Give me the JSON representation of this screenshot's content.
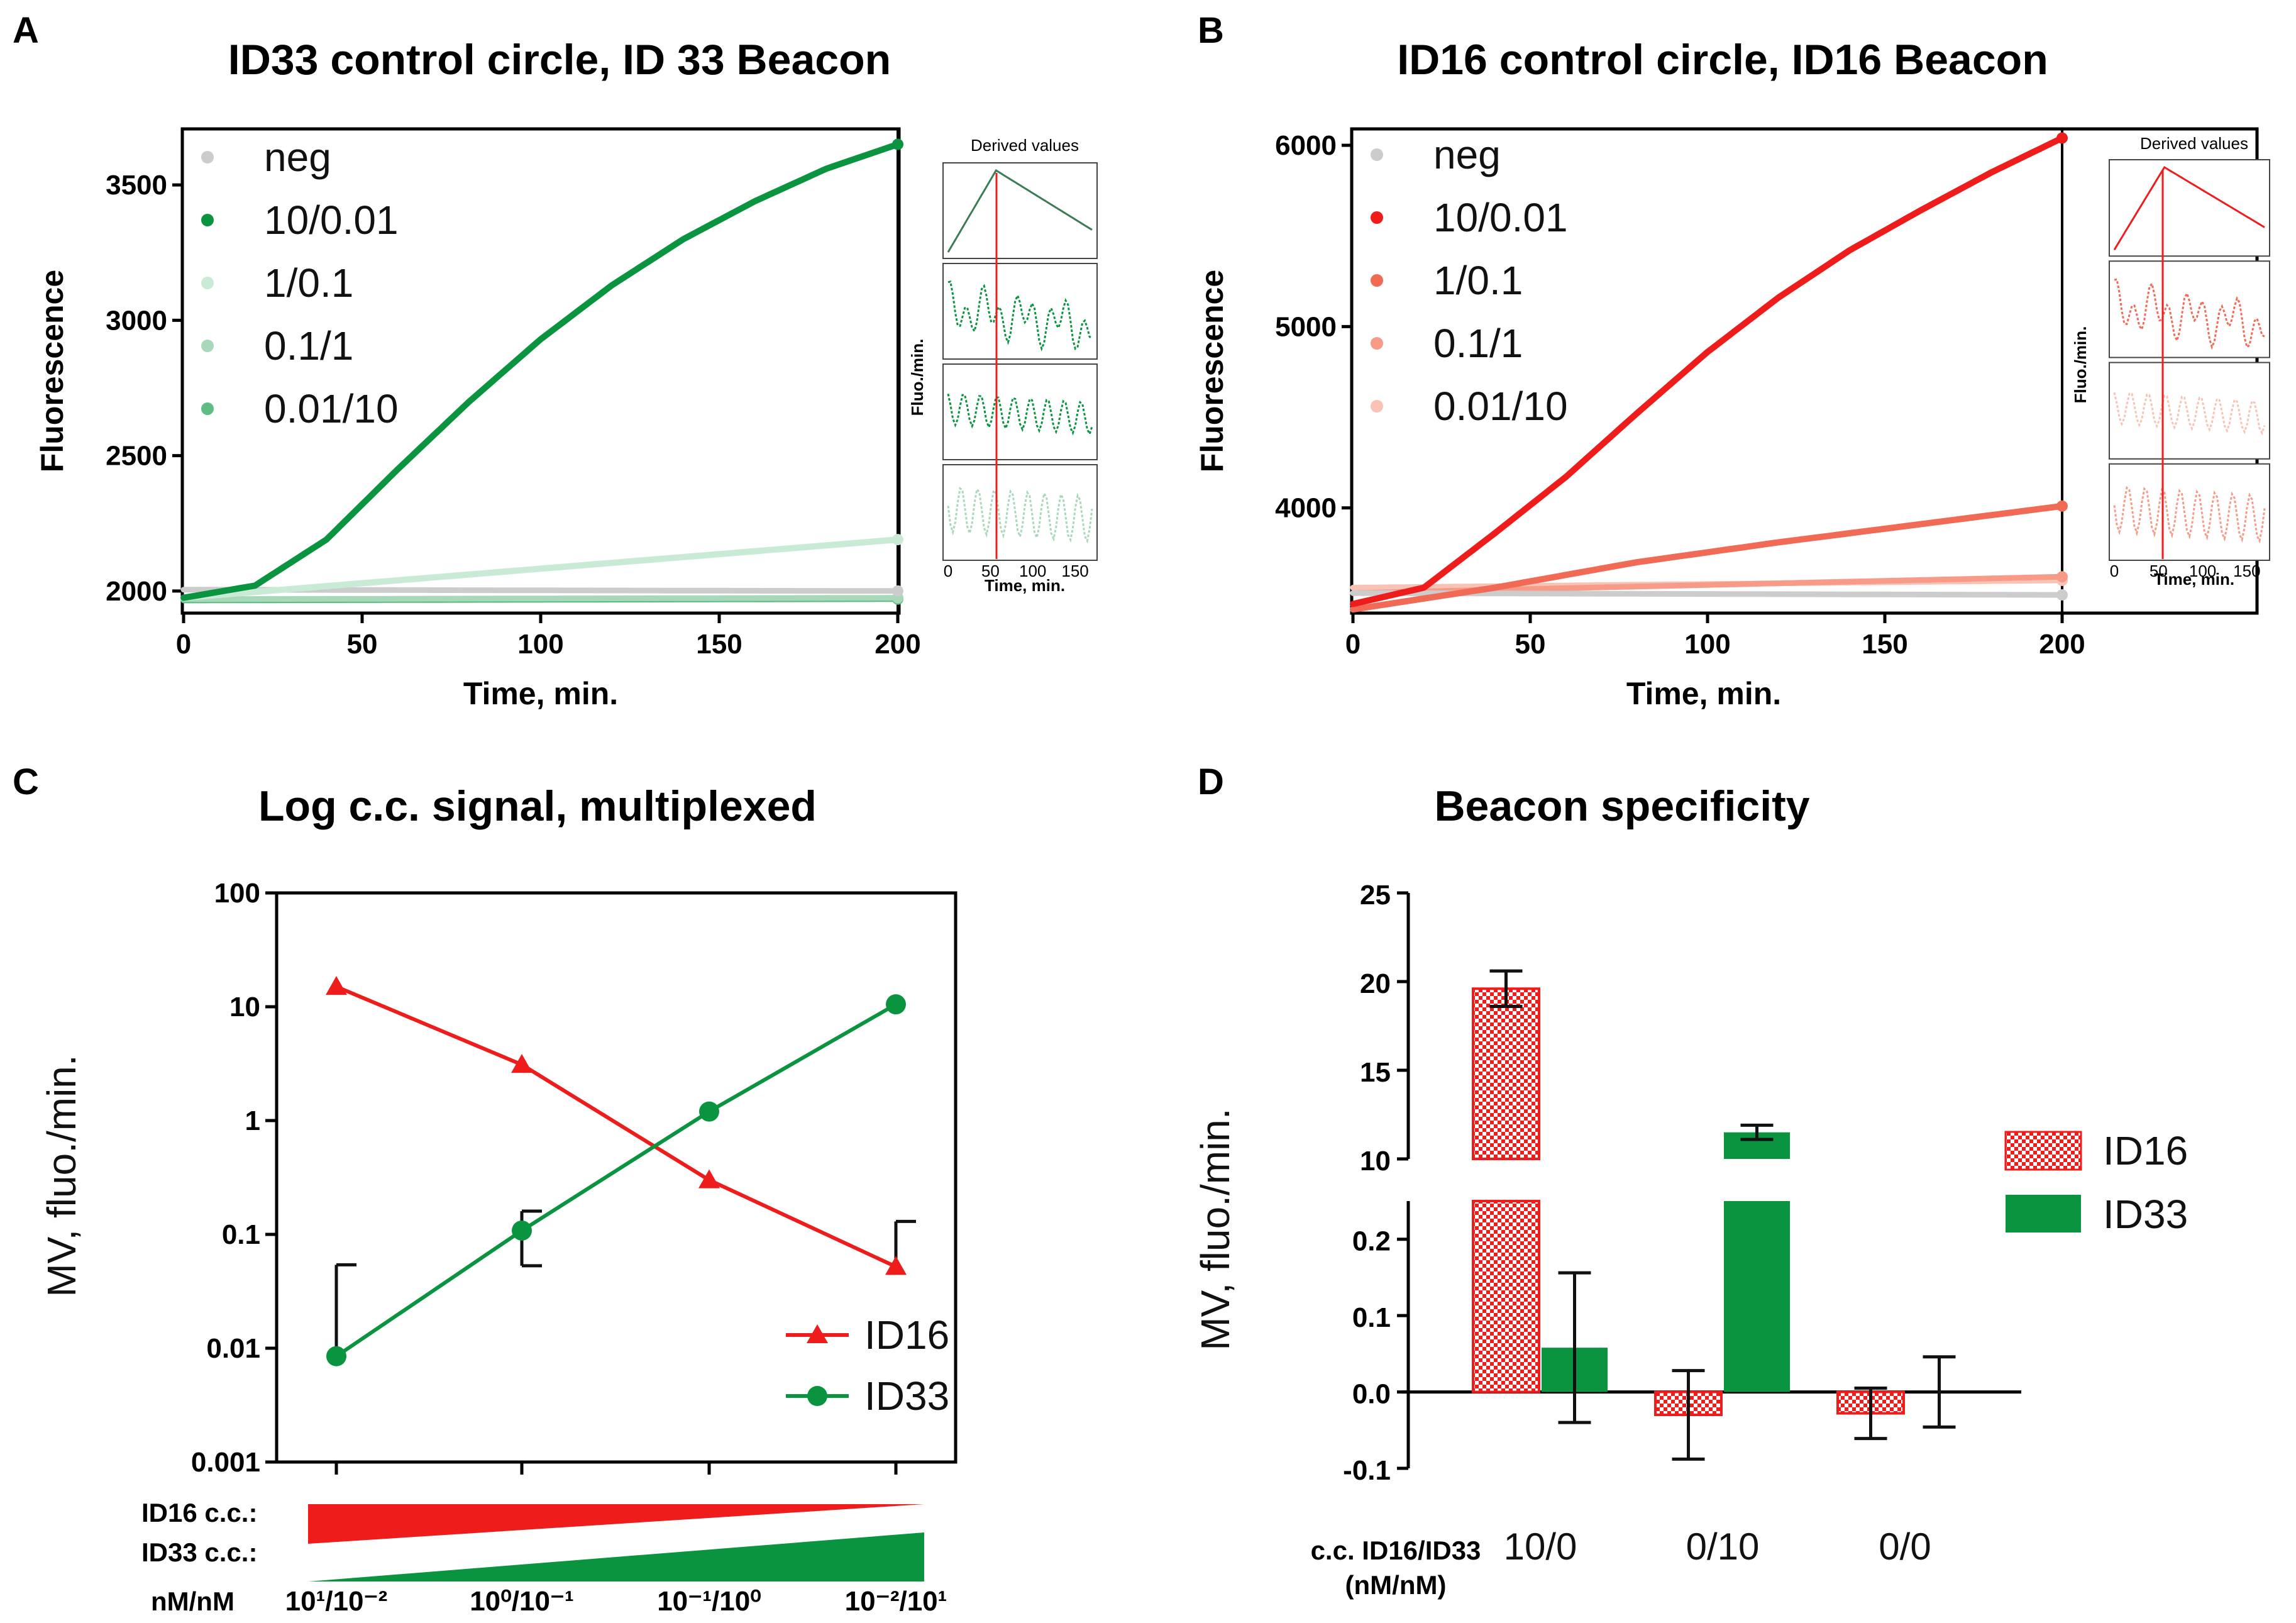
{
  "colors": {
    "green": "#0a9440",
    "red": "#ef1c1c",
    "grey": "#cccccc",
    "green_light": "#c9ead5",
    "green_mid": "#5fbd84",
    "green_soft": "#a8d8b9",
    "red_mid": "#f06a55",
    "red_soft": "#f79a88",
    "red_light": "#f8c3b5",
    "inset_green_dark": "#3d7a56",
    "inset_red": "#ef1c1c"
  },
  "chart_data": [
    {
      "panel": "A",
      "type": "line",
      "title": "ID33 control circle, ID 33 Beacon",
      "xlabel": "Time, min.",
      "ylabel": "Fluorescence",
      "xlim": [
        0,
        200
      ],
      "ylim": [
        1930,
        3700
      ],
      "xticks": [
        "0",
        "50",
        "100",
        "150",
        "200"
      ],
      "yticks": [
        "2000",
        "2500",
        "3000",
        "3500"
      ],
      "series": [
        {
          "name": "neg",
          "x": [
            0,
            200
          ],
          "y": [
            2005,
            2000
          ]
        },
        {
          "name": "10/0.01",
          "x": [
            0,
            20,
            40,
            60,
            80,
            100,
            120,
            140,
            160,
            180,
            200
          ],
          "y": [
            1975,
            2020,
            2190,
            2450,
            2700,
            2930,
            3130,
            3300,
            3440,
            3560,
            3650
          ]
        },
        {
          "name": "1/0.1",
          "x": [
            0,
            200
          ],
          "y": [
            1975,
            2190
          ]
        },
        {
          "name": "0.1/1",
          "x": [
            0,
            200
          ],
          "y": [
            1970,
            1975
          ]
        },
        {
          "name": "0.01/10",
          "x": [
            0,
            200
          ],
          "y": [
            1965,
            1970
          ]
        }
      ],
      "inset": {
        "title": "Derived values",
        "ylabel": "Fluo./min.",
        "xlabel": "Time, min.",
        "xticks": [
          "0",
          "50",
          "100",
          "150"
        ]
      }
    },
    {
      "panel": "B",
      "type": "line",
      "title": "ID16 control circle, ID16 Beacon",
      "xlabel": "Time, min.",
      "ylabel": "Fluorescence",
      "xlim": [
        0,
        200
      ],
      "ylim": [
        3430,
        6080
      ],
      "xticks": [
        "0",
        "50",
        "100",
        "150",
        "200"
      ],
      "yticks": [
        "4000",
        "5000",
        "6000"
      ],
      "series": [
        {
          "name": "neg",
          "x": [
            0,
            200
          ],
          "y": [
            3530,
            3520
          ]
        },
        {
          "name": "10/0.01",
          "x": [
            0,
            20,
            40,
            60,
            80,
            100,
            120,
            140,
            160,
            180,
            200
          ],
          "y": [
            3470,
            3560,
            3860,
            4170,
            4520,
            4860,
            5160,
            5420,
            5640,
            5850,
            6040
          ]
        },
        {
          "name": "1/0.1",
          "x": [
            0,
            40,
            80,
            120,
            160,
            200
          ],
          "y": [
            3440,
            3560,
            3700,
            3810,
            3910,
            4010
          ]
        },
        {
          "name": "0.1/1",
          "x": [
            0,
            200
          ],
          "y": [
            3530,
            3620
          ]
        },
        {
          "name": "0.01/10",
          "x": [
            0,
            200
          ],
          "y": [
            3560,
            3600
          ]
        }
      ],
      "inset": {
        "title": "Derived values",
        "ylabel": "Fluo./min.",
        "xlabel": "Time, min.",
        "xticks": [
          "0",
          "50",
          "100",
          "150"
        ]
      }
    },
    {
      "panel": "C",
      "type": "line",
      "title": "Log c.c. signal, multiplexed",
      "ylabel": "MV,  fluo./min.",
      "yscale": "log",
      "ylim": [
        0.001,
        100
      ],
      "yticks": [
        "0.001",
        "0.01",
        "0.1",
        "1",
        "10",
        "100"
      ],
      "categories": [
        "10¹/10⁻²",
        "10⁰/10⁻¹",
        "10⁻¹/10⁰",
        "10⁻²/10¹"
      ],
      "series": [
        {
          "name": "ID16",
          "values": [
            15,
            3.1,
            0.3,
            0.052
          ],
          "error_upper": [
            null,
            null,
            null,
            0.13
          ]
        },
        {
          "name": "ID33",
          "values": [
            0.0085,
            0.108,
            1.2,
            10.5
          ],
          "error_upper": [
            0.054,
            0.16,
            null,
            null
          ],
          "error_lower": [
            null,
            0.053,
            null,
            null
          ]
        }
      ],
      "gradient_labels": {
        "id16": "ID16 c.c.:",
        "id33": "ID33 c.c.:",
        "unit": "nM/nM"
      }
    },
    {
      "panel": "D",
      "type": "bar",
      "title": "Beacon specificity",
      "ylabel": "MV,  fluo./min.",
      "xlabel": "c.c. ID16/ID33 (nM/nM)",
      "categories": [
        "10/0",
        "0/10",
        "0/0"
      ],
      "yticks_upper": [
        "10",
        "15",
        "20",
        "25"
      ],
      "yticks_lower": [
        "-0.1",
        "0.0",
        "0.1",
        "0.2"
      ],
      "series": [
        {
          "name": "ID16",
          "values": [
            19.6,
            -0.03,
            -0.028
          ],
          "errors": [
            1.0,
            0.058,
            0.033
          ]
        },
        {
          "name": "ID33",
          "values": [
            0.058,
            11.5,
            0.0
          ],
          "errors": [
            0.098,
            0.4,
            0.046
          ]
        }
      ]
    }
  ],
  "labels": {
    "panel_a": "A",
    "panel_b": "B",
    "panel_c": "C",
    "panel_d": "D",
    "cc_label_line1": "c.c. ID16/ID33",
    "cc_label_line2": "(nM/nM)"
  }
}
